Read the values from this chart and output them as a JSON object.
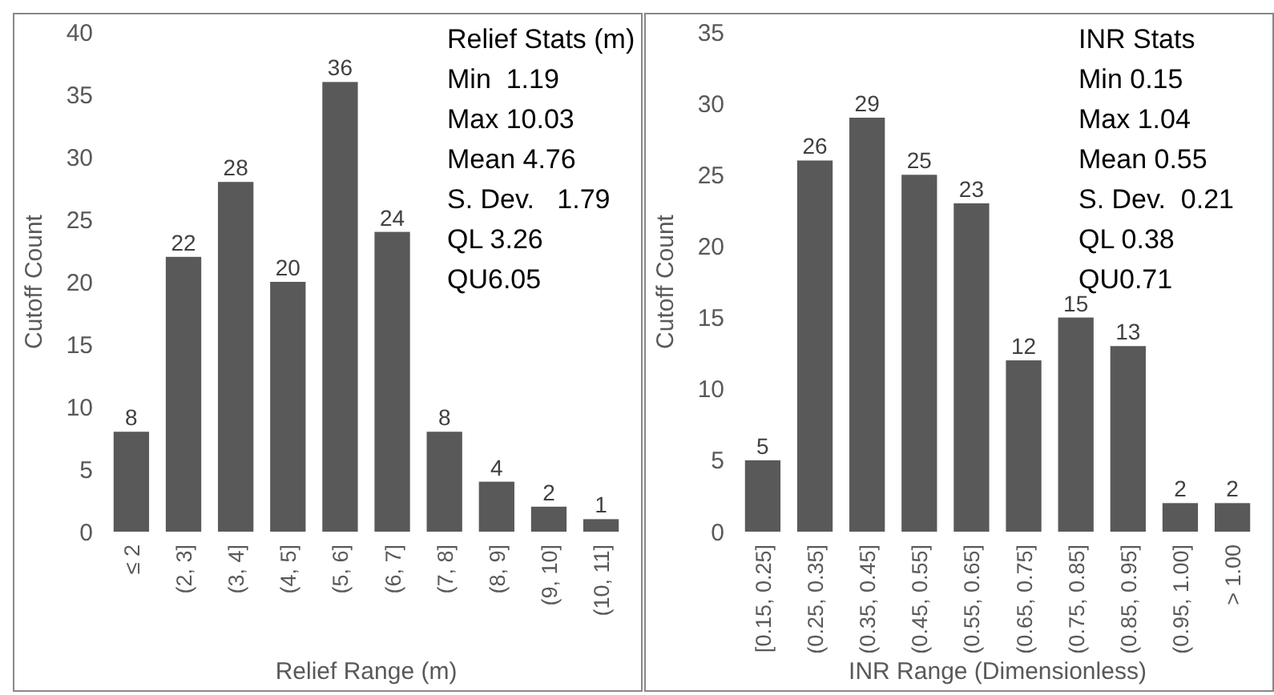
{
  "chart_data": [
    {
      "type": "bar",
      "xlabel": "Relief Range (m)",
      "ylabel": "Cutoff Count",
      "categories": [
        "≤ 2",
        "(2, 3]",
        "(3, 4]",
        "(4, 5]",
        "(5, 6]",
        "(6, 7]",
        "(7, 8]",
        "(8, 9]",
        "(9, 10]",
        "(10, 11]"
      ],
      "values": [
        8,
        22,
        28,
        20,
        36,
        24,
        8,
        4,
        2,
        1
      ],
      "color": "#595959",
      "ylim": [
        0,
        40
      ],
      "yticks": [
        0,
        5,
        10,
        15,
        20,
        25,
        30,
        35,
        40
      ],
      "data_labels": true,
      "annotations": [
        "Relief Stats (m)",
        "Min  1.19",
        "Max 10.03",
        "Mean 4.76",
        "S. Dev.   1.79",
        "QL 3.26",
        "QU6.05"
      ]
    },
    {
      "type": "bar",
      "xlabel": "INR Range (Dimensionless)",
      "ylabel": "Cutoff Count",
      "categories": [
        "[0.15, 0.25]",
        "(0.25, 0.35]",
        "(0.35, 0.45]",
        "(0.45, 0.55]",
        "(0.55, 0.65]",
        "(0.65, 0.75]",
        "(0.75, 0.85]",
        "(0.85, 0.95]",
        "(0.95, 1.00]",
        "> 1.00"
      ],
      "values": [
        5,
        26,
        29,
        25,
        23,
        12,
        15,
        13,
        2,
        2
      ],
      "color": "#595959",
      "ylim": [
        0,
        35
      ],
      "yticks": [
        0,
        5,
        10,
        15,
        20,
        25,
        30,
        35
      ],
      "data_labels": true,
      "annotations": [
        "INR Stats",
        "Min 0.15",
        "Max 1.04",
        "Mean 0.55",
        "S. Dev.  0.21",
        "QL 0.38",
        "QU0.71"
      ]
    }
  ]
}
